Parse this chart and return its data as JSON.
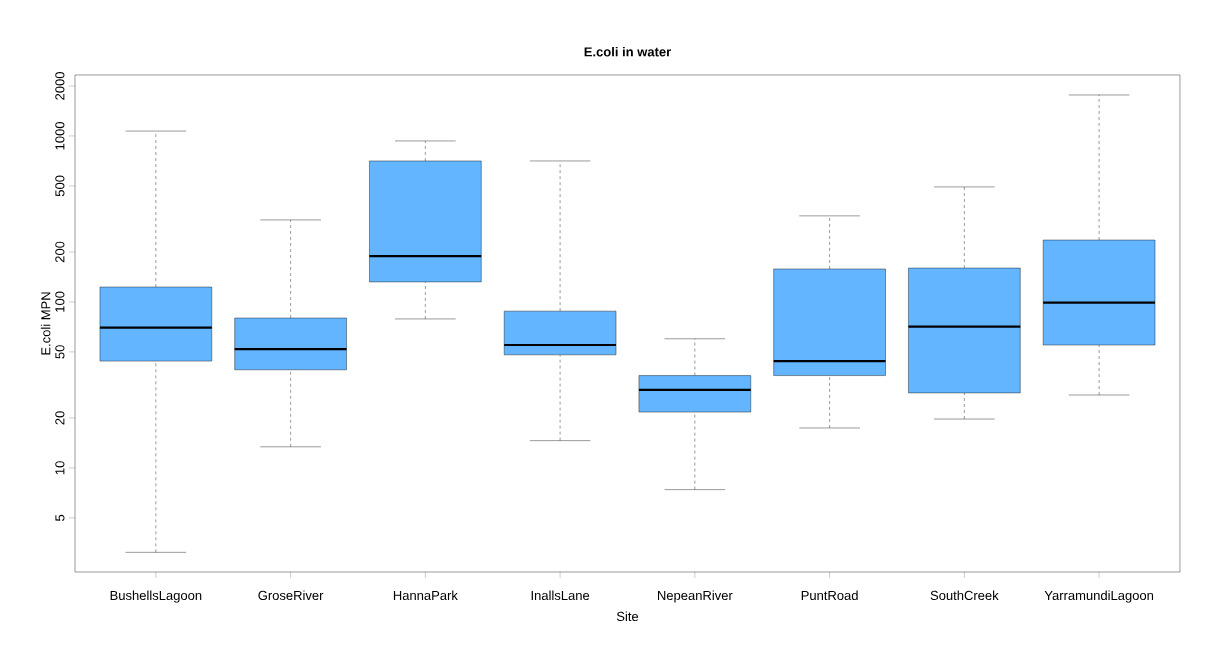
{
  "chart_data": {
    "type": "box",
    "title": "E.coli in water",
    "xlabel": "Site",
    "ylabel": "E.coli MPN",
    "log": "y",
    "color": "#63b5ff",
    "categories": [
      "BushellsLagoon",
      "GroseRiver",
      "HannaPark",
      "InallsLane",
      "NepeanRiver",
      "PuntRoad",
      "SouthCreek",
      "YarramundiLagoon"
    ],
    "boxes": [
      {
        "low": 3.1,
        "q1": 44,
        "median": 70,
        "q3": 123,
        "high": 1070
      },
      {
        "low": 13.4,
        "q1": 39,
        "median": 52,
        "q3": 80,
        "high": 312
      },
      {
        "low": 79,
        "q1": 132,
        "median": 189,
        "q3": 707,
        "high": 933
      },
      {
        "low": 14.6,
        "q1": 48,
        "median": 55,
        "q3": 88,
        "high": 707
      },
      {
        "low": 7.4,
        "q1": 21.7,
        "median": 29.5,
        "q3": 36,
        "high": 60
      },
      {
        "low": 17.4,
        "q1": 36,
        "median": 44,
        "q3": 158,
        "high": 330
      },
      {
        "low": 19.7,
        "q1": 28.3,
        "median": 71,
        "q3": 160,
        "high": 493
      },
      {
        "low": 27.5,
        "q1": 55,
        "median": 99,
        "q3": 236,
        "high": 1766
      }
    ],
    "ylim": [
      2.36,
      2330
    ],
    "yticks": [
      5,
      10,
      20,
      50,
      100,
      200,
      500,
      1000,
      2000
    ]
  }
}
